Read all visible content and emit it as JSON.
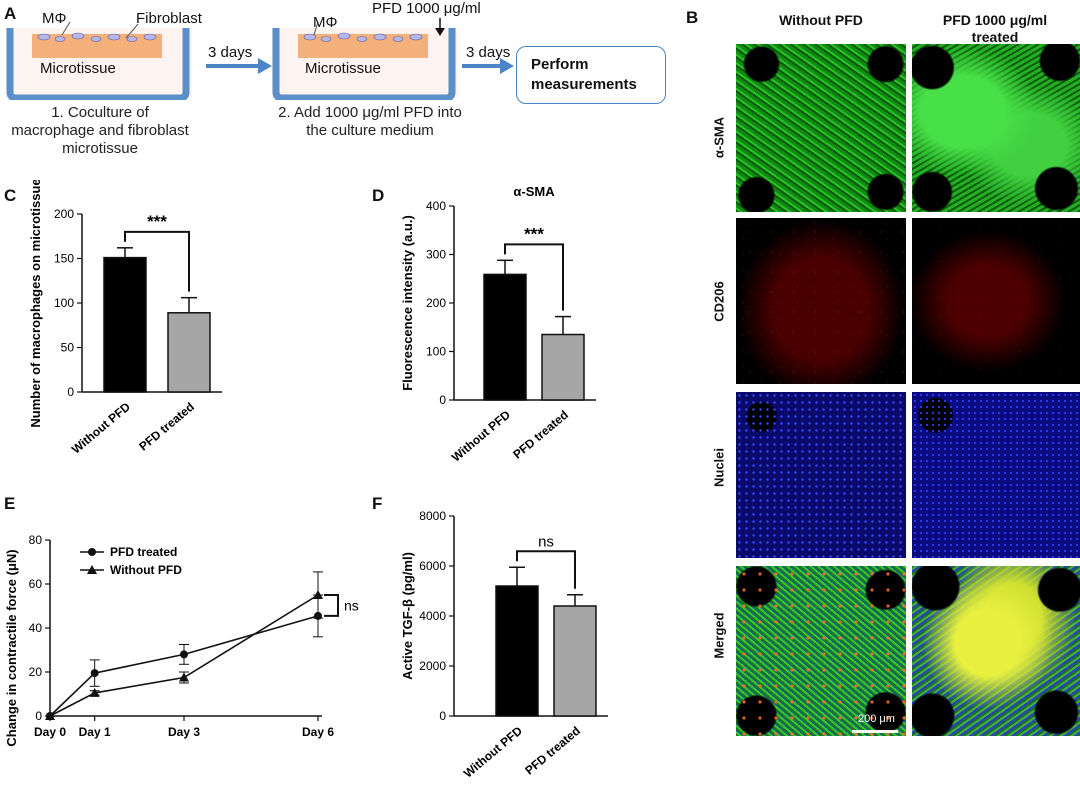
{
  "panel_labels": {
    "a": "A",
    "b": "B",
    "c": "C",
    "d": "D",
    "e": "E",
    "f": "F"
  },
  "panel_a": {
    "mphi_label": "MΦ",
    "fibroblast_label": "Fibroblast",
    "microtissue_label": "Microtissue",
    "step1_caption": [
      "1. Coculture of",
      "macrophage and fibroblast",
      "microtissue"
    ],
    "arrow1_label": "3 days",
    "pfd_label": "PFD 1000 μg/ml",
    "step2_caption": [
      "2. Add 1000 μg/ml PFD into",
      "the culture medium"
    ],
    "arrow2_label": "3 days",
    "measure_box": [
      "Perform",
      "measurements"
    ],
    "colors": {
      "tissue": "#f3b07a",
      "well": "#5b8fc9",
      "arrow": "#4a86c7"
    }
  },
  "panel_b": {
    "col_headers": [
      "Without PFD",
      "PFD 1000 μg/ml\ntreated"
    ],
    "col_header_1": "Without PFD",
    "col_header_2a": "PFD 1000 μg/ml",
    "col_header_2b": "treated",
    "row_labels": [
      "α-SMA",
      "CD206",
      "Nuclei",
      "Merged"
    ],
    "scale_bar_label": "200 μm",
    "colors": {
      "sma": "#1fb91f",
      "cd206": "#e01414",
      "nuclei": "#1f2ce6"
    }
  },
  "chart_data": [
    {
      "panel": "C",
      "type": "bar",
      "title": "",
      "categories": [
        "Without PFD",
        "PFD treated"
      ],
      "values": [
        151,
        89
      ],
      "errors": [
        11,
        17
      ],
      "ylabel": "Number of macrophages on microtissue",
      "ylim": [
        0,
        200
      ],
      "yticks": [
        0,
        50,
        100,
        150,
        200
      ],
      "significance": "***",
      "bar_colors": [
        "#000000",
        "#a6a6a6"
      ]
    },
    {
      "panel": "D",
      "type": "bar",
      "title": "α-SMA",
      "categories": [
        "Without PFD",
        "PFD treated"
      ],
      "values": [
        259,
        135
      ],
      "errors": [
        29,
        37
      ],
      "ylabel": "Fluorescence intensity (a.u.)",
      "ylim": [
        0,
        400
      ],
      "yticks": [
        0,
        100,
        200,
        300,
        400
      ],
      "significance": "***",
      "bar_colors": [
        "#000000",
        "#a6a6a6"
      ]
    },
    {
      "panel": "E",
      "type": "line",
      "categories": [
        "Day 0",
        "Day 1",
        "Day 3",
        "Day 6"
      ],
      "x": [
        0,
        1,
        3,
        6
      ],
      "series": [
        {
          "name": "PFD treated",
          "marker": "circle",
          "values": [
            0,
            19.5,
            28,
            45.5
          ],
          "errors": [
            0,
            6,
            4.5,
            9.5
          ]
        },
        {
          "name": "Without PFD",
          "marker": "triangle",
          "values": [
            0,
            10.5,
            17.5,
            55
          ],
          "errors": [
            0,
            1,
            2.5,
            10.5
          ]
        }
      ],
      "ylabel": "Change in contractile force (μN)",
      "ylim": [
        0,
        80
      ],
      "yticks": [
        0,
        20,
        40,
        60,
        80
      ],
      "significance": "ns",
      "legend": "top-left"
    },
    {
      "panel": "F",
      "type": "bar",
      "title": "",
      "categories": [
        "Without PFD",
        "PFD treated"
      ],
      "values": [
        5200,
        4400
      ],
      "errors": [
        750,
        450
      ],
      "ylabel": "Active TGF-β (pg/ml)",
      "ylim": [
        0,
        8000
      ],
      "yticks": [
        0,
        2000,
        4000,
        6000,
        8000
      ],
      "significance": "ns",
      "bar_colors": [
        "#000000",
        "#a6a6a6"
      ]
    }
  ]
}
